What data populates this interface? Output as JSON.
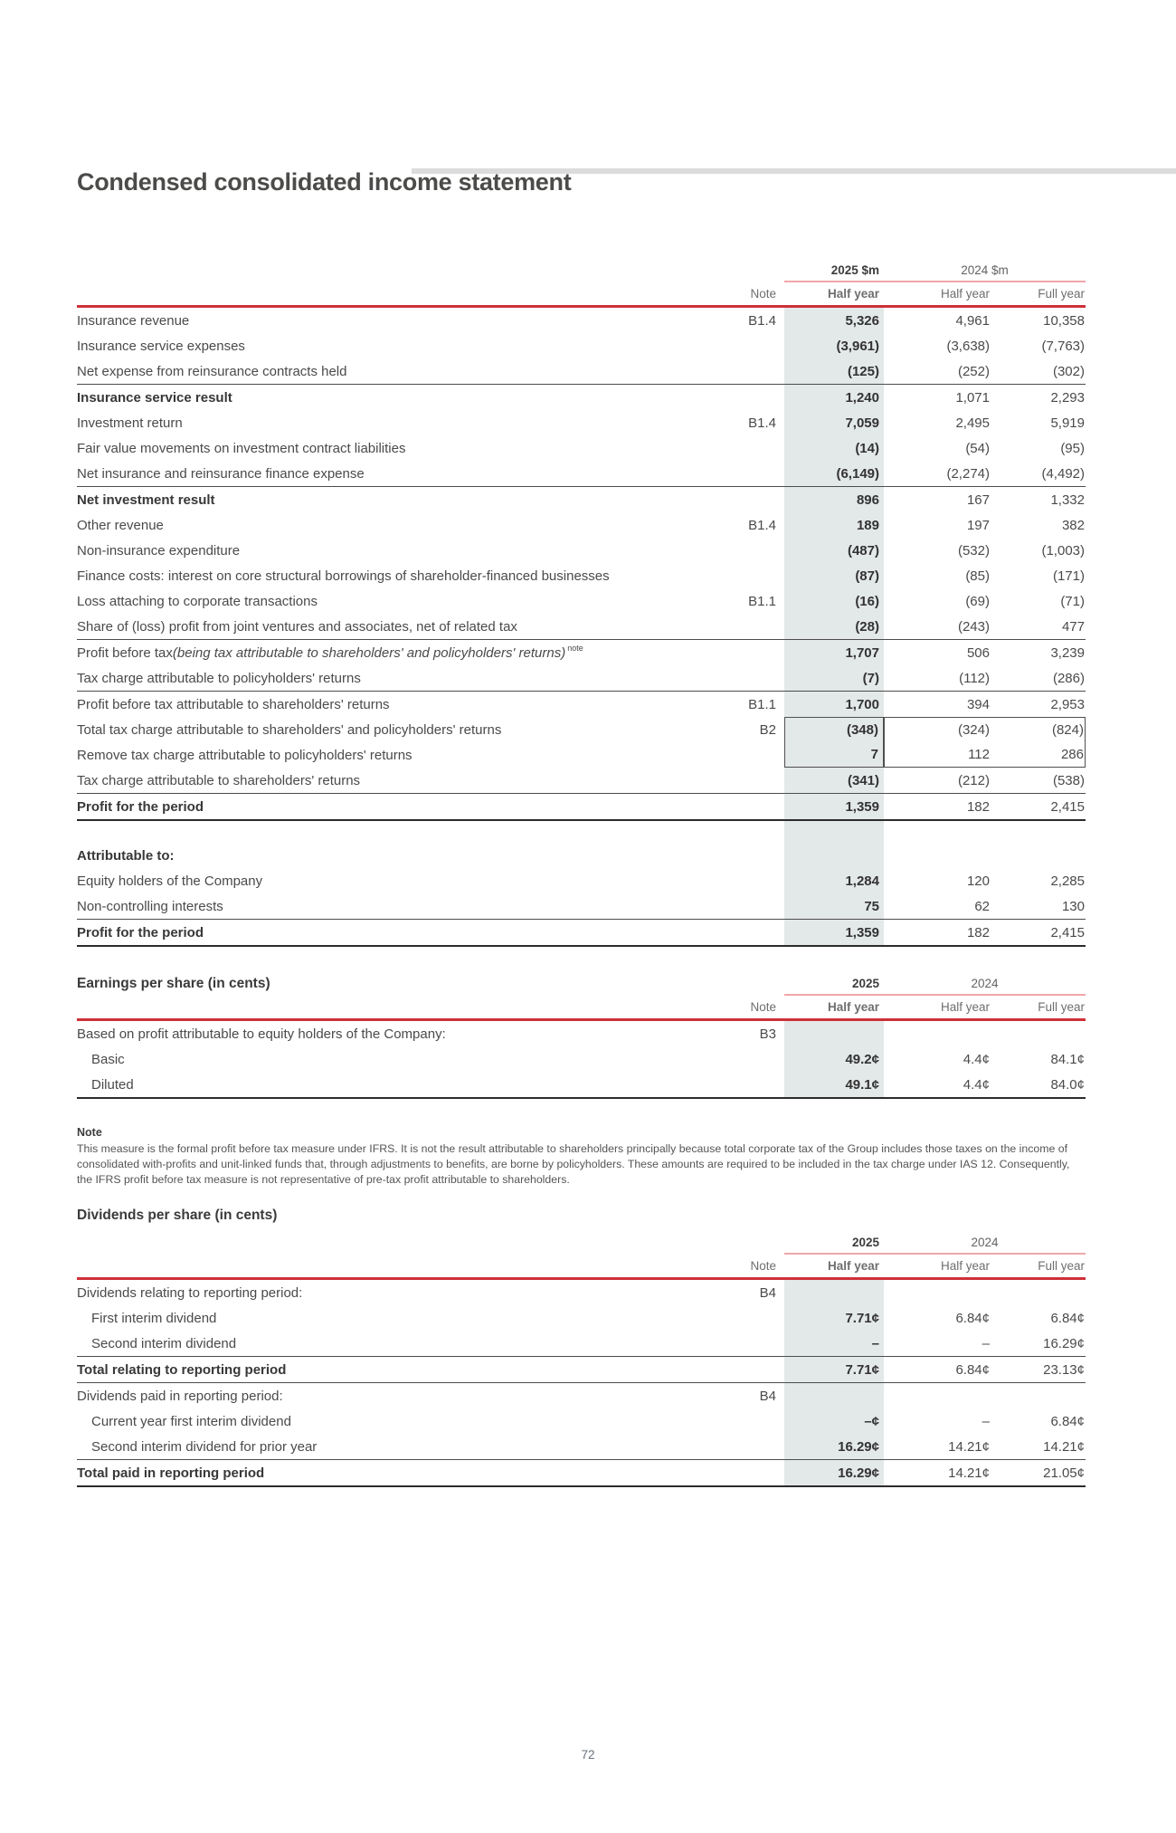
{
  "page": {
    "title": "Condensed consolidated income statement",
    "page_number": "72"
  },
  "colors": {
    "accent_red": "#cd3138",
    "underline_pink": "#f0a6a9",
    "column_shade": "#e3e8e8",
    "thick_rule": "#2b2b2b"
  },
  "income_statement": {
    "header": {
      "group_2025": "2025 $m",
      "group_2024": "2024 $m",
      "note": "Note",
      "col_2025_hy": "Half year",
      "col_2024_hy": "Half year",
      "col_2024_fy": "Full year"
    },
    "rows": [
      {
        "label": "Insurance revenue",
        "note": "B1.4",
        "v2025": "5,326",
        "v2024hy": "4,961",
        "v2024fy": "10,358"
      },
      {
        "label": "Insurance service expenses",
        "v2025": "(3,961)",
        "v2024hy": "(3,638)",
        "v2024fy": "(7,763)"
      },
      {
        "label": "Net expense from reinsurance contracts held",
        "v2025": "(125)",
        "v2024hy": "(252)",
        "v2024fy": "(302)",
        "sep": true
      },
      {
        "label": "Insurance service result",
        "bold": true,
        "v2025": "1,240",
        "v2024hy": "1,071",
        "v2024fy": "2,293"
      },
      {
        "label": "Investment return",
        "note": "B1.4",
        "v2025": "7,059",
        "v2024hy": "2,495",
        "v2024fy": "5,919"
      },
      {
        "label": "Fair value movements on investment contract liabilities",
        "v2025": "(14)",
        "v2024hy": "(54)",
        "v2024fy": "(95)"
      },
      {
        "label": "Net insurance and reinsurance finance expense",
        "v2025": "(6,149)",
        "v2024hy": "(2,274)",
        "v2024fy": "(4,492)",
        "sep": true
      },
      {
        "label": "Net investment result",
        "bold": true,
        "v2025": "896",
        "v2024hy": "167",
        "v2024fy": "1,332"
      },
      {
        "label": "Other revenue",
        "note": "B1.4",
        "v2025": "189",
        "v2024hy": "197",
        "v2024fy": "382"
      },
      {
        "label": "Non-insurance expenditure",
        "v2025": "(487)",
        "v2024hy": "(532)",
        "v2024fy": "(1,003)"
      },
      {
        "label": "Finance costs: interest on core structural borrowings of shareholder-financed businesses",
        "v2025": "(87)",
        "v2024hy": "(85)",
        "v2024fy": "(171)"
      },
      {
        "label": "Loss attaching to corporate transactions",
        "note": "B1.1",
        "v2025": "(16)",
        "v2024hy": "(69)",
        "v2024fy": "(71)"
      },
      {
        "label": "Share of (loss) profit from joint ventures and associates, net of related tax",
        "v2025": "(28)",
        "v2024hy": "(243)",
        "v2024fy": "477",
        "sep": true
      },
      {
        "label": "Profit before tax ",
        "label_italic": "(being tax attributable to shareholders' and policyholders' returns)",
        "label_sup": "note",
        "v2025": "1,707",
        "v2024hy": "506",
        "v2024fy": "3,239"
      },
      {
        "label": "Tax charge attributable to policyholders' returns",
        "v2025": "(7)",
        "v2024hy": "(112)",
        "v2024fy": "(286)",
        "sep": true
      },
      {
        "label": "Profit before tax attributable to shareholders' returns",
        "note": "B1.1",
        "v2025": "1,700",
        "v2024hy": "394",
        "v2024fy": "2,953"
      },
      {
        "label": "Total tax charge attributable to shareholders' and policyholders' returns",
        "note": "B2",
        "v2025": "(348)",
        "v2024hy": "(324)",
        "v2024fy": "(824)",
        "box": "top"
      },
      {
        "label": "Remove tax charge attributable to policyholders' returns",
        "v2025": "7",
        "v2024hy": "112",
        "v2024fy": "286",
        "box": "bottom"
      },
      {
        "label": "Tax charge attributable to shareholders' returns",
        "v2025": "(341)",
        "v2024hy": "(212)",
        "v2024fy": "(538)",
        "sep": true
      },
      {
        "label": "Profit for the period",
        "bold": true,
        "v2025": "1,359",
        "v2024hy": "182",
        "v2024fy": "2,415",
        "thick": true
      },
      {
        "spacer": true
      },
      {
        "label": "Attributable to:",
        "bold": true
      },
      {
        "label": "Equity holders of the Company",
        "v2025": "1,284",
        "v2024hy": "120",
        "v2024fy": "2,285"
      },
      {
        "label": "Non-controlling interests",
        "v2025": "75",
        "v2024hy": "62",
        "v2024fy": "130",
        "sep": true
      },
      {
        "label": "Profit for the period",
        "bold": true,
        "v2025": "1,359",
        "v2024hy": "182",
        "v2024fy": "2,415",
        "thick": true
      }
    ]
  },
  "eps": {
    "heading": "Earnings per share (in cents)",
    "header": {
      "group_2025": "2025",
      "group_2024": "2024",
      "note": "Note",
      "col_2025_hy": "Half year",
      "col_2024_hy": "Half year",
      "col_2024_fy": "Full year"
    },
    "rows": [
      {
        "label": "Based on profit attributable to equity holders of the Company:",
        "note": "B3"
      },
      {
        "label": "Basic",
        "indent": true,
        "v2025": "49.2¢",
        "v2024hy": "4.4¢",
        "v2024fy": "84.1¢"
      },
      {
        "label": "Diluted",
        "indent": true,
        "v2025": "49.1¢",
        "v2024hy": "4.4¢",
        "v2024fy": "84.0¢",
        "thick": true
      }
    ]
  },
  "footnote": {
    "heading": "Note",
    "text": "This measure is the formal profit before tax measure under IFRS. It is not the result attributable to shareholders principally because total corporate tax of the Group includes those taxes on the income of consolidated with-profits and unit-linked funds that, through adjustments to benefits, are borne by policyholders. These amounts are required to be included in the tax charge under IAS 12. Consequently, the IFRS profit before tax measure is not representative of pre-tax profit attributable to shareholders."
  },
  "dividends": {
    "heading": "Dividends per share (in cents)",
    "header": {
      "group_2025": "2025",
      "group_2024": "2024",
      "note": "Note",
      "col_2025_hy": "Half year",
      "col_2024_hy": "Half year",
      "col_2024_fy": "Full year"
    },
    "rows": [
      {
        "label": "Dividends relating to reporting period:",
        "note": "B4"
      },
      {
        "label": "First interim dividend",
        "indent": true,
        "v2025": "7.71¢",
        "v2024hy": "6.84¢",
        "v2024fy": "6.84¢"
      },
      {
        "label": "Second interim dividend",
        "indent": true,
        "v2025": "–",
        "v2024hy": "–",
        "v2024fy": "16.29¢",
        "sep": true
      },
      {
        "label": "Total relating to reporting period",
        "bold": true,
        "v2025": "7.71¢",
        "v2024hy": "6.84¢",
        "v2024fy": "23.13¢",
        "sep": true
      },
      {
        "label": "Dividends paid in reporting period:",
        "note": "B4"
      },
      {
        "label": "Current year first interim dividend",
        "indent": true,
        "v2025": "–¢",
        "v2024hy": "–",
        "v2024fy": "6.84¢"
      },
      {
        "label": "Second interim dividend for prior year",
        "indent": true,
        "v2025": "16.29¢",
        "v2024hy": "14.21¢",
        "v2024fy": "14.21¢",
        "sep": true
      },
      {
        "label": "Total paid in reporting period",
        "bold": true,
        "v2025": "16.29¢",
        "v2024hy": "14.21¢",
        "v2024fy": "21.05¢",
        "thick": true
      }
    ]
  }
}
